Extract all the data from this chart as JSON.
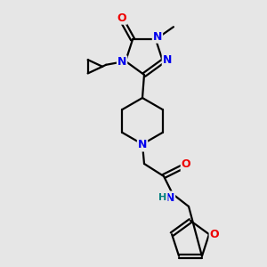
{
  "bg_color": "#e6e6e6",
  "atom_colors": {
    "N": "#0000ee",
    "O": "#ee0000",
    "C": "#000000",
    "H": "#008080"
  },
  "bond_color": "#000000",
  "figsize": [
    3.0,
    3.0
  ],
  "dpi": 100
}
